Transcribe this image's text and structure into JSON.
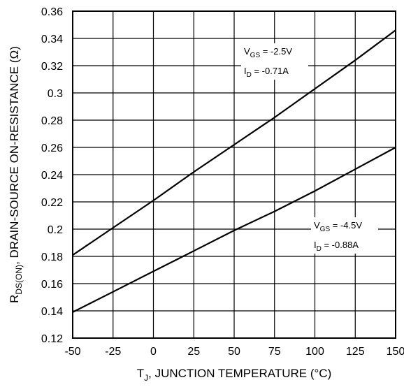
{
  "chart_data": {
    "type": "line",
    "x_axis": {
      "label_main": "T",
      "label_sub": "J",
      "label_rest": ", JUNCTION TEMPERATURE (°C)",
      "min": -50,
      "max": 150,
      "ticks": [
        -50,
        -25,
        0,
        25,
        50,
        75,
        100,
        125,
        150
      ],
      "tick_labels": [
        "-50",
        "-25",
        "0",
        "25",
        "50",
        "75",
        "100",
        "125",
        "150"
      ]
    },
    "y_axis": {
      "label_main": "R",
      "label_sub": "DS(ON)",
      "label_rest": ", DRAIN-SOURCE ON-RESISTANCE (Ω)",
      "min": 0.12,
      "max": 0.36,
      "ticks": [
        0.12,
        0.14,
        0.16,
        0.18,
        0.2,
        0.22,
        0.24,
        0.26,
        0.28,
        0.3,
        0.32,
        0.34,
        0.36
      ],
      "tick_labels": [
        "0.12",
        "0.14",
        "0.16",
        "0.18",
        "0.2",
        "0.22",
        "0.24",
        "0.26",
        "0.28",
        "0.3",
        "0.32",
        "0.34",
        "0.36"
      ]
    },
    "grid": true,
    "series": [
      {
        "condition": "VGS = -2.5V, ID = -0.71A",
        "x": [
          -50,
          -25,
          0,
          25,
          50,
          75,
          100,
          125,
          150
        ],
        "y": [
          0.181,
          0.201,
          0.221,
          0.242,
          0.262,
          0.282,
          0.303,
          0.324,
          0.346
        ]
      },
      {
        "condition": "VGS = -4.5V, ID = -0.88A",
        "x": [
          -50,
          -25,
          0,
          25,
          50,
          75,
          100,
          125,
          150
        ],
        "y": [
          0.139,
          0.154,
          0.169,
          0.184,
          0.199,
          0.213,
          0.228,
          0.244,
          0.26
        ]
      }
    ],
    "annotations": [
      {
        "series": 0,
        "line1": {
          "main": "V",
          "sub": "GS",
          "rest": " = -2.5V"
        },
        "line2": {
          "main": "I",
          "sub": "D",
          "rest": " = -0.71A"
        }
      },
      {
        "series": 1,
        "line1": {
          "main": "V",
          "sub": "GS",
          "rest": " = -4.5V"
        },
        "line2": {
          "main": "I",
          "sub": "D",
          "rest": " = -0.88A"
        }
      }
    ]
  }
}
